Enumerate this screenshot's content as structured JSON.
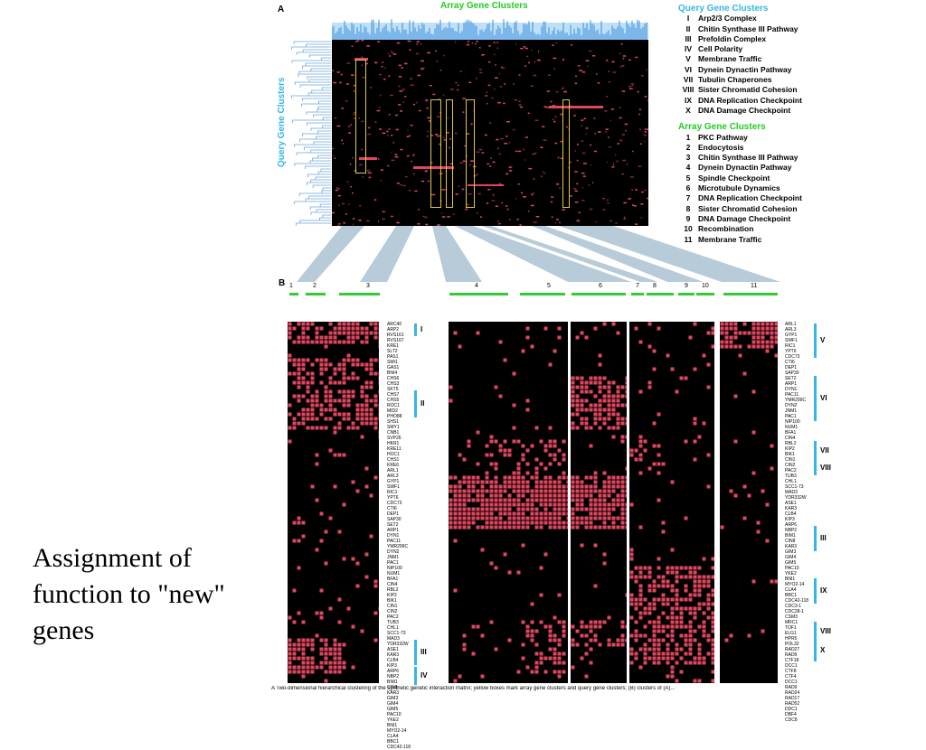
{
  "slide": {
    "title": "Assignment of function to \"new\" genes"
  },
  "panel_a": {
    "label": "A",
    "array_axis": "Array Gene Clusters",
    "query_axis": "Query Gene Clusters",
    "query_legend_title": "Query Gene Clusters",
    "query_legend": [
      {
        "num": "I",
        "name": "Arp2/3 Complex"
      },
      {
        "num": "II",
        "name": "Chitin Synthase III Pathway"
      },
      {
        "num": "III",
        "name": "Prefoldin Complex"
      },
      {
        "num": "IV",
        "name": "Cell Polarity"
      },
      {
        "num": "V",
        "name": "Membrane Traffic"
      },
      {
        "num": "VI",
        "name": "Dynein Dynactin Pathway"
      },
      {
        "num": "VII",
        "name": "Tubulin Chaperones"
      },
      {
        "num": "VIII",
        "name": "Sister Chromatid Cohesion"
      },
      {
        "num": "IX",
        "name": "DNA  Replication Checkpoint"
      },
      {
        "num": "X",
        "name": "DNA  Damage Checkpoint"
      }
    ],
    "array_legend_title": "Array Gene Clusters",
    "array_legend": [
      {
        "num": "1",
        "name": "PKC Pathway"
      },
      {
        "num": "2",
        "name": "Endocytosis"
      },
      {
        "num": "3",
        "name": "Chitin Synthase III Pathway"
      },
      {
        "num": "4",
        "name": "Dynein Dynactin Pathway"
      },
      {
        "num": "5",
        "name": "Spindle Checkpoint"
      },
      {
        "num": "6",
        "name": "Microtubule Dynamics"
      },
      {
        "num": "7",
        "name": "DNA Replication Checkpoint"
      },
      {
        "num": "8",
        "name": "Sister Chromatid Cohesion"
      },
      {
        "num": "9",
        "name": "DNA  Damage Checkpoint"
      },
      {
        "num": "10",
        "name": "Recombination"
      },
      {
        "num": "11",
        "name": "Membrane Traffic"
      }
    ]
  },
  "panel_b": {
    "label": "B",
    "cluster_numbers": [
      "1",
      "2",
      "3",
      "4",
      "5",
      "6",
      "7",
      "8",
      "9",
      "10",
      "11"
    ],
    "left_rows": "ARC40\nARP2\nRVS161\nRVS167\nKRE1\nSLT2\nPAS1\nSMI1\nGAS1\nBNI4\nCHS6\nCHS3\nSKT5\nCHS7\nCHS5\nROC1\nMID2\nPHO88\nSHS1\nSMY1\nCNB1\nSVP26\nHKR1\nKRE11\nHOC1\nCHS1\nKRE6\nARL1\nARL3\nGYP1\nSWF1\nRIC1\nYPT6\nCDC73\nCTI6\nDEP1\nSAP30\nSET2\nARP1\nDYN1\nPAC11\nYMR299C\nDYN2\nJNM1\nPAC1\nNIP100\nNUM1\nBFA1\nCIN4\nRBL2\nKIP2\nBIK1\nCIN1\nCIN2\nPAC2\nTUB3\nCHL1\nSCC1-73\nMAD3\nYDR332W\nASE1\nKAR3\nCLB4\nKIP3\nARP6\nNBP2\nBIM1\nCIN8\nKAR3\nGIM3\nGIM4\nGIM5\nPAC10\nYKE2\nBNI1\nMYO2-14\nCLA4\nBBC1\nCDC42-118",
    "right_rows": "ARL1\nARL3\nGYP1\nSWF1\nRIC1\nYPT6\nCDC73\nCTI6\nDEP1\nSAP30\nSET2\nARP1\nDYN1\nPAC11\nYMR299C\nDYN2\nJNM1\nPAC1\nNIP100\nNUM1\nBFA1\nCIN4\nRBL2\nKIP2\nBIK1\nCIN1\nCIN2\nPAC2\nTUB3\nCHL1\nSCC1-73\nMAD3\nYDR332W\nASE1\nKAR3\nCLB4\nKIP3\nARP6\nNBP2\nBIM1\nCIN8\nKAR3\nGIM3\nGIM4\nGIM5\nPAC10\nYKE2\nBNI1\nMYO2-14\nCLA4\nBBC1\nCDC42-118\nCDC3-1\nCDC28-1\nCSM3\nMRC1\nTOF1\nELG1\nHPR5\nPOL32\nRAD27\nRAD9\nCTF18\nDCC1\nCTF8\nCTF4\nDCC1\nRAD9\nRAD24\nRAD17\nRAD52\nDDC1\nDBF4\nCDC8",
    "left_markers": [
      {
        "num": "I"
      },
      {
        "num": "II"
      },
      {
        "num": "III"
      },
      {
        "num": "IV"
      }
    ],
    "right_markers": [
      {
        "num": "V"
      },
      {
        "num": "VI"
      },
      {
        "num": "VII"
      },
      {
        "num": "VIII"
      },
      {
        "num": "III"
      },
      {
        "num": "IX"
      },
      {
        "num": "VIII"
      },
      {
        "num": "X"
      }
    ],
    "caption": "A  Two-dimensional hierarchical clustering of the synthetic genetic interaction matrix; yellow boxes mark array gene clusters and query gene clusters; (B) clusters of (A)..."
  },
  "colors": {
    "interaction": "#e0475f",
    "background": "#000000",
    "dendrogram": "#3a8ee0",
    "cyan": "#35b6e6",
    "green": "#22cc22",
    "box": "#e3c84a"
  }
}
